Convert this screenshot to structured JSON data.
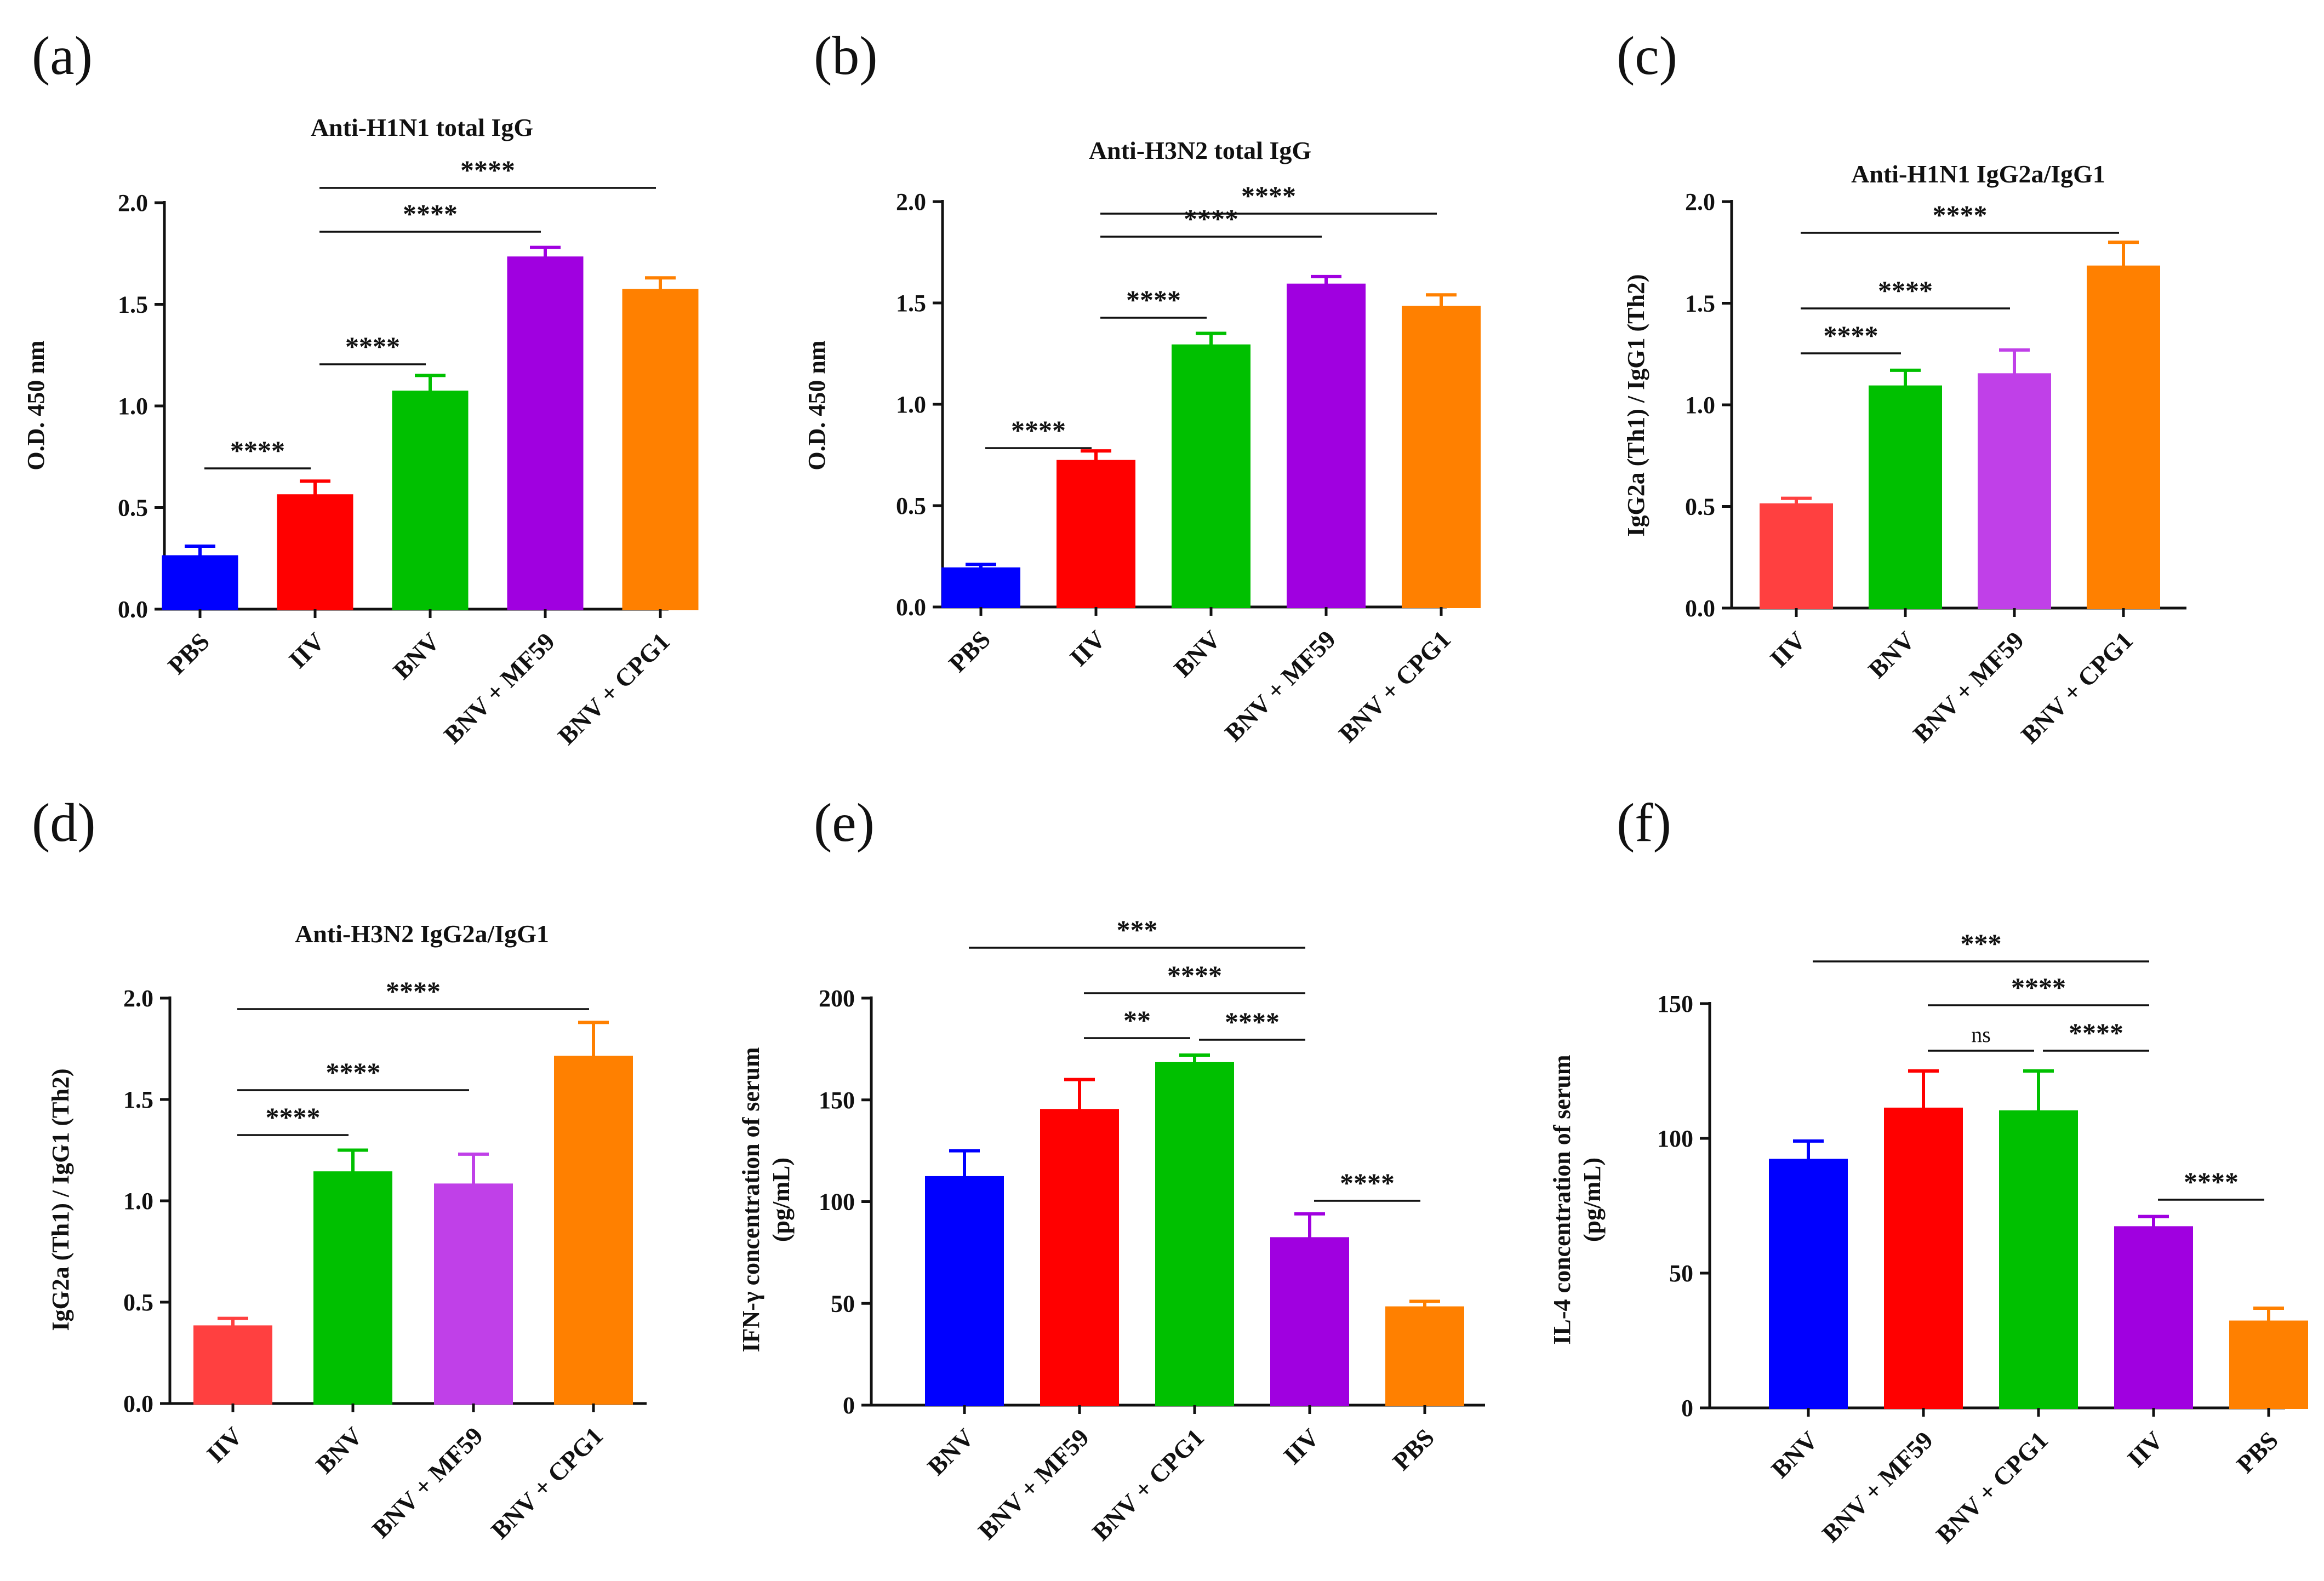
{
  "chart_data": [
    {
      "panel": "(a)",
      "type": "bar",
      "title": "Anti-H1N1 total IgG",
      "ylabel": "O.D. 450 nm",
      "ylim": [
        0,
        2.0
      ],
      "yticks": [
        0.0,
        0.5,
        1.0,
        1.5,
        2.0
      ],
      "ytick_labels": [
        "0.0",
        "0.5",
        "1.0",
        "1.5",
        "2.0"
      ],
      "categories": [
        "PBS",
        "IIV",
        "BNV",
        "BNV + MF59",
        "BNV + CPG1"
      ],
      "values": [
        0.26,
        0.56,
        1.07,
        1.73,
        1.57
      ],
      "errors": [
        0.05,
        0.07,
        0.08,
        0.05,
        0.06
      ],
      "colors": [
        "#0000FF",
        "#FF0000",
        "#00C000",
        "#A000E0",
        "#FF8000"
      ],
      "significance": [
        {
          "from": 0,
          "to": 1,
          "label": "****"
        },
        {
          "from": 1,
          "to": 2,
          "label": "****"
        },
        {
          "from": 1,
          "to": 3,
          "label": "****"
        },
        {
          "from": 1,
          "to": 4,
          "label": "****"
        }
      ]
    },
    {
      "panel": "(b)",
      "type": "bar",
      "title": "Anti-H3N2 total IgG",
      "ylabel": "O.D. 450 nm",
      "ylim": [
        0,
        2.0
      ],
      "yticks": [
        0.0,
        0.5,
        1.0,
        1.5,
        2.0
      ],
      "ytick_labels": [
        "0.0",
        "0.5",
        "1.0",
        "1.5",
        "2.0"
      ],
      "categories": [
        "PBS",
        "IIV",
        "BNV",
        "BNV + MF59",
        "BNV + CPG1"
      ],
      "values": [
        0.19,
        0.72,
        1.29,
        1.59,
        1.48
      ],
      "errors": [
        0.02,
        0.05,
        0.06,
        0.04,
        0.06
      ],
      "colors": [
        "#0000FF",
        "#FF0000",
        "#00C000",
        "#A000E0",
        "#FF8000"
      ],
      "significance": [
        {
          "from": 0,
          "to": 1,
          "label": "****"
        },
        {
          "from": 1,
          "to": 2,
          "label": "****"
        },
        {
          "from": 1,
          "to": 3,
          "label": "****"
        },
        {
          "from": 1,
          "to": 4,
          "label": "****"
        }
      ]
    },
    {
      "panel": "(c)",
      "type": "bar",
      "title": "Anti-H1N1 IgG2a/IgG1",
      "ylabel": "IgG2a (Th1) / IgG1 (Th2)",
      "ylim": [
        0,
        2.0
      ],
      "yticks": [
        0.0,
        0.5,
        1.0,
        1.5,
        2.0
      ],
      "ytick_labels": [
        "0.0",
        "0.5",
        "1.0",
        "1.5",
        "2.0"
      ],
      "categories": [
        "IIV",
        "BNV",
        "BNV + MF59",
        "BNV + CPG1"
      ],
      "values": [
        0.51,
        1.09,
        1.15,
        1.68
      ],
      "errors": [
        0.03,
        0.08,
        0.12,
        0.12
      ],
      "colors": [
        "#FF4040",
        "#00C000",
        "#C040E8",
        "#FF8000"
      ],
      "significance": [
        {
          "from": 0,
          "to": 1,
          "label": "****"
        },
        {
          "from": 0,
          "to": 2,
          "label": "****"
        },
        {
          "from": 0,
          "to": 3,
          "label": "****"
        }
      ]
    },
    {
      "panel": "(d)",
      "type": "bar",
      "title": "Anti-H3N2 IgG2a/IgG1",
      "ylabel": "IgG2a (Th1) / IgG1 (Th2)",
      "ylim": [
        0,
        2.0
      ],
      "yticks": [
        0.0,
        0.5,
        1.0,
        1.5,
        2.0
      ],
      "ytick_labels": [
        "0.0",
        "0.5",
        "1.0",
        "1.5",
        "2.0"
      ],
      "categories": [
        "IIV",
        "BNV",
        "BNV + MF59",
        "BNV + CPG1"
      ],
      "values": [
        0.38,
        1.14,
        1.08,
        1.71
      ],
      "errors": [
        0.04,
        0.11,
        0.15,
        0.17
      ],
      "colors": [
        "#FF4040",
        "#00C000",
        "#C040E8",
        "#FF8000"
      ],
      "significance": [
        {
          "from": 0,
          "to": 1,
          "label": "****"
        },
        {
          "from": 0,
          "to": 2,
          "label": "****"
        },
        {
          "from": 0,
          "to": 3,
          "label": "****"
        }
      ]
    },
    {
      "panel": "(e)",
      "type": "bar",
      "title": "",
      "ylabel": "IFN-γ concentration of serum (pg/mL)",
      "ylabel_lines": [
        "IFN-γ concentration of serum",
        "(pg/mL)"
      ],
      "ylim": [
        0,
        200
      ],
      "yticks": [
        0,
        50,
        100,
        150,
        200
      ],
      "ytick_labels": [
        "0",
        "50",
        "100",
        "150",
        "200"
      ],
      "categories": [
        "BNV",
        "BNV + MF59",
        "BNV + CPG1",
        "IIV",
        "PBS"
      ],
      "values": [
        112,
        145,
        168,
        82,
        48
      ],
      "errors": [
        13,
        15,
        4,
        12,
        3
      ],
      "colors": [
        "#0000FF",
        "#FF0000",
        "#00C000",
        "#A000E0",
        "#FF8000"
      ],
      "significance": [
        {
          "from": 0,
          "to": 3,
          "label": "***"
        },
        {
          "from": 1,
          "to": 3,
          "label": "****"
        },
        {
          "from": 1,
          "to": 2,
          "label": "**"
        },
        {
          "from": 2,
          "to": 3,
          "label": "****"
        },
        {
          "from": 3,
          "to": 4,
          "label": "****"
        }
      ]
    },
    {
      "panel": "(f)",
      "type": "bar",
      "title": "",
      "ylabel": "IL-4 concentration of serum (pg/mL)",
      "ylabel_lines": [
        "IL-4 concentration of serum",
        "(pg/mL)"
      ],
      "ylim": [
        0,
        150
      ],
      "yticks": [
        0,
        50,
        100,
        150
      ],
      "ytick_labels": [
        "0",
        "50",
        "100",
        "150"
      ],
      "categories": [
        "BNV",
        "BNV + MF59",
        "BNV + CPG1",
        "IIV",
        "PBS"
      ],
      "values": [
        92,
        111,
        110,
        67,
        32
      ],
      "errors": [
        7,
        14,
        15,
        4,
        5
      ],
      "colors": [
        "#0000FF",
        "#FF0000",
        "#00C000",
        "#A000E0",
        "#FF8000"
      ],
      "significance": [
        {
          "from": 0,
          "to": 3,
          "label": "***"
        },
        {
          "from": 1,
          "to": 3,
          "label": "****"
        },
        {
          "from": 1,
          "to": 2,
          "label": "ns"
        },
        {
          "from": 2,
          "to": 3,
          "label": "****"
        },
        {
          "from": 3,
          "to": 4,
          "label": "****"
        }
      ]
    }
  ]
}
